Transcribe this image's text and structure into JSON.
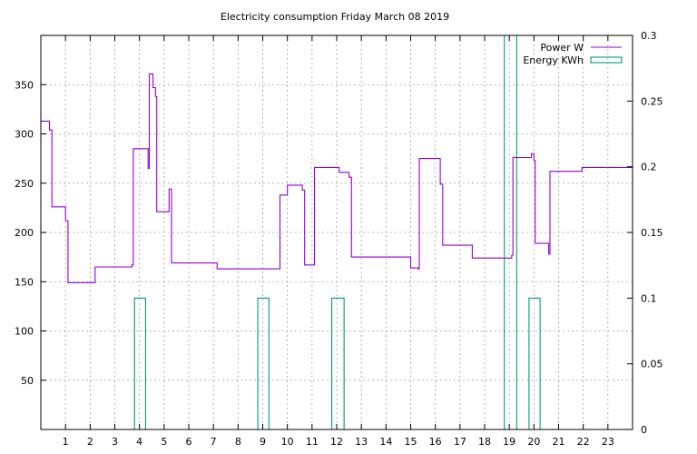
{
  "chart_data": {
    "type": "line",
    "title": "Electricity consumption Friday March 08 2019",
    "xlabel": "",
    "ylabel": "",
    "xlim": [
      0,
      24
    ],
    "ylim": [
      0,
      400
    ],
    "y2lim": [
      0,
      0.3
    ],
    "x_ticks": [
      1,
      2,
      3,
      4,
      5,
      6,
      7,
      8,
      9,
      10,
      11,
      12,
      13,
      14,
      15,
      16,
      17,
      18,
      19,
      20,
      21,
      22,
      23
    ],
    "y_ticks": [
      50,
      100,
      150,
      200,
      250,
      300,
      350
    ],
    "y2_ticks": [
      0,
      0.05,
      0.1,
      0.15,
      0.2,
      0.25,
      0.3
    ],
    "grid": true,
    "legend_position": "top-right",
    "series": [
      {
        "name": "Power W",
        "axis": "y",
        "color": "#9400d3",
        "style": "step",
        "points": [
          [
            0,
            313
          ],
          [
            0.35,
            313
          ],
          [
            0.35,
            304
          ],
          [
            0.45,
            304
          ],
          [
            0.45,
            226
          ],
          [
            1.0,
            226
          ],
          [
            1.0,
            212
          ],
          [
            1.1,
            212
          ],
          [
            1.1,
            149
          ],
          [
            2.2,
            149
          ],
          [
            2.2,
            165
          ],
          [
            3.7,
            165
          ],
          [
            3.7,
            167
          ],
          [
            3.75,
            167
          ],
          [
            3.75,
            285
          ],
          [
            4.35,
            285
          ],
          [
            4.35,
            265
          ],
          [
            4.4,
            265
          ],
          [
            4.4,
            361
          ],
          [
            4.55,
            361
          ],
          [
            4.55,
            347
          ],
          [
            4.65,
            347
          ],
          [
            4.65,
            338
          ],
          [
            4.7,
            338
          ],
          [
            4.7,
            221
          ],
          [
            5.2,
            221
          ],
          [
            5.2,
            244
          ],
          [
            5.3,
            244
          ],
          [
            5.3,
            169
          ],
          [
            7.15,
            169
          ],
          [
            7.15,
            163
          ],
          [
            9.7,
            163
          ],
          [
            9.7,
            238
          ],
          [
            10.0,
            238
          ],
          [
            10.0,
            248
          ],
          [
            10.6,
            248
          ],
          [
            10.6,
            243
          ],
          [
            10.7,
            243
          ],
          [
            10.7,
            167
          ],
          [
            11.1,
            167
          ],
          [
            11.1,
            266
          ],
          [
            12.1,
            266
          ],
          [
            12.1,
            261
          ],
          [
            12.5,
            261
          ],
          [
            12.5,
            256
          ],
          [
            12.6,
            256
          ],
          [
            12.6,
            175
          ],
          [
            15.0,
            175
          ],
          [
            15.0,
            164
          ],
          [
            15.3,
            164
          ],
          [
            15.3,
            163
          ],
          [
            15.35,
            163
          ],
          [
            15.35,
            275
          ],
          [
            16.2,
            275
          ],
          [
            16.2,
            249
          ],
          [
            16.3,
            249
          ],
          [
            16.3,
            187
          ],
          [
            17.5,
            187
          ],
          [
            17.5,
            174
          ],
          [
            19.1,
            174
          ],
          [
            19.1,
            177
          ],
          [
            19.15,
            177
          ],
          [
            19.15,
            276
          ],
          [
            19.9,
            276
          ],
          [
            19.9,
            280
          ],
          [
            20.0,
            280
          ],
          [
            20.0,
            273
          ],
          [
            20.05,
            273
          ],
          [
            20.05,
            189
          ],
          [
            20.6,
            189
          ],
          [
            20.6,
            178
          ],
          [
            20.65,
            178
          ],
          [
            20.65,
            262
          ],
          [
            21.95,
            262
          ],
          [
            21.95,
            266
          ],
          [
            24,
            266
          ]
        ]
      },
      {
        "name": "Energy KWh",
        "axis": "y2",
        "color": "#009e73",
        "style": "bars",
        "bars": [
          {
            "x0": 3.8,
            "x1": 4.25,
            "value": 0.1
          },
          {
            "x0": 8.8,
            "x1": 9.25,
            "value": 0.1
          },
          {
            "x0": 11.8,
            "x1": 12.3,
            "value": 0.1
          },
          {
            "x0": 18.8,
            "x1": 19.3,
            "value": 0.3
          },
          {
            "x0": 19.8,
            "x1": 20.25,
            "value": 0.1
          }
        ]
      }
    ]
  }
}
